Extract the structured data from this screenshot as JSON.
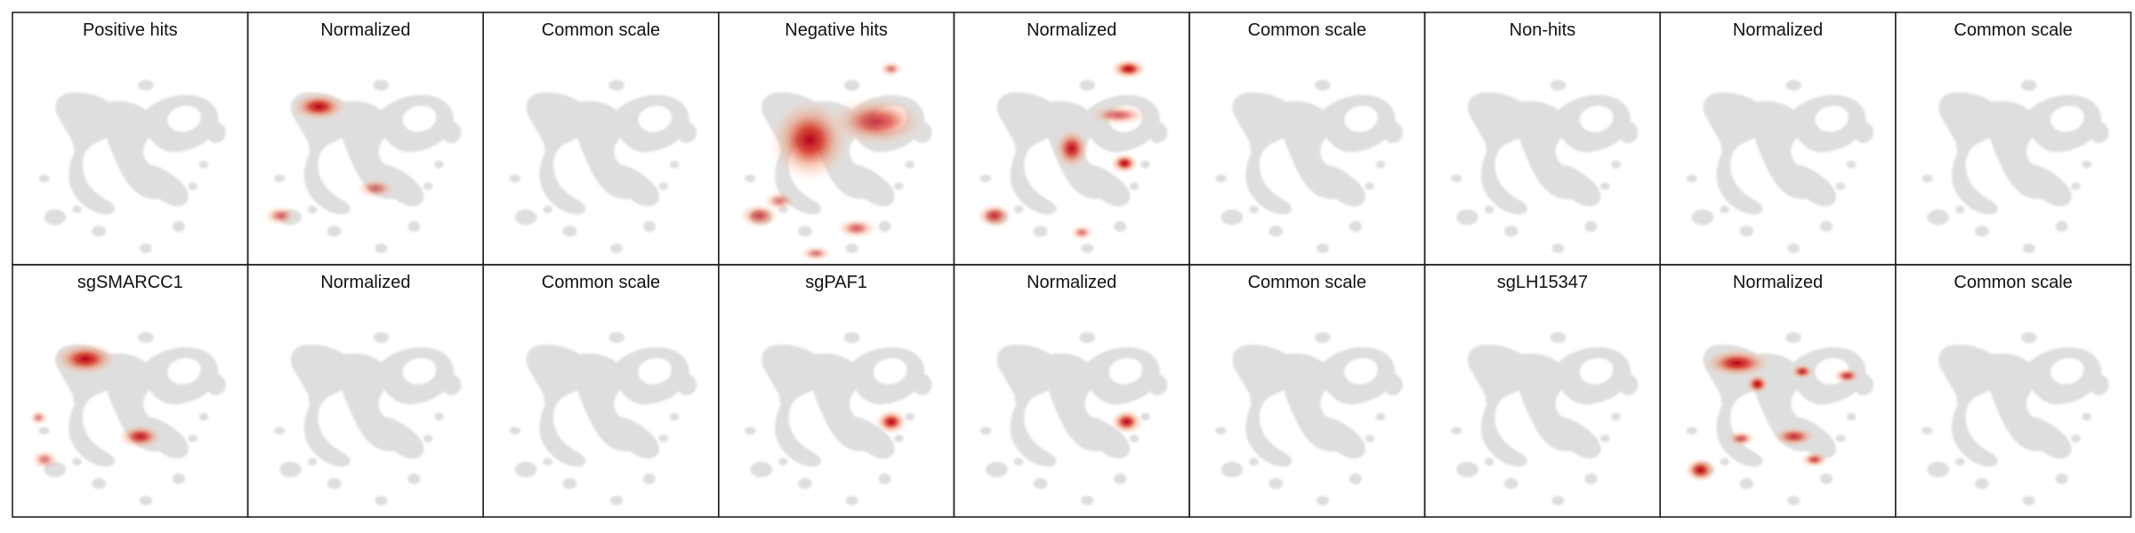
{
  "chart_data": {
    "type": "heatmap",
    "description_kind": "umap-density-grid",
    "rows": 2,
    "cols": 9,
    "grid": false,
    "colors": {
      "base_cells": "#dedede",
      "density_low": "#f3d6c2",
      "density_mid": "#e0553a",
      "density_high": "#b3001b"
    },
    "panels": [
      {
        "title": "Positive hits",
        "hotspots": []
      },
      {
        "title": "Normalized",
        "hotspots": [
          {
            "x": 0.27,
            "y": 0.28,
            "rx": 0.14,
            "ry": 0.07,
            "v": 0.95
          },
          {
            "x": 0.08,
            "y": 0.8,
            "rx": 0.08,
            "ry": 0.05,
            "v": 0.35
          },
          {
            "x": 0.55,
            "y": 0.67,
            "rx": 0.1,
            "ry": 0.05,
            "v": 0.3
          }
        ]
      },
      {
        "title": "Common scale",
        "hotspots": []
      },
      {
        "title": "Negative hits",
        "hotspots": [
          {
            "x": 0.37,
            "y": 0.44,
            "rx": 0.2,
            "ry": 0.2,
            "v": 0.95
          },
          {
            "x": 0.7,
            "y": 0.35,
            "rx": 0.24,
            "ry": 0.12,
            "v": 0.55
          },
          {
            "x": 0.12,
            "y": 0.8,
            "rx": 0.1,
            "ry": 0.06,
            "v": 0.45
          },
          {
            "x": 0.6,
            "y": 0.86,
            "rx": 0.1,
            "ry": 0.05,
            "v": 0.4
          },
          {
            "x": 0.4,
            "y": 0.98,
            "rx": 0.08,
            "ry": 0.04,
            "v": 0.3
          },
          {
            "x": 0.77,
            "y": 0.1,
            "rx": 0.06,
            "ry": 0.04,
            "v": 0.3
          },
          {
            "x": 0.22,
            "y": 0.73,
            "rx": 0.08,
            "ry": 0.05,
            "v": 0.3
          }
        ]
      },
      {
        "title": "Normalized",
        "hotspots": [
          {
            "x": 0.78,
            "y": 0.1,
            "rx": 0.09,
            "ry": 0.05,
            "v": 0.95
          },
          {
            "x": 0.5,
            "y": 0.48,
            "rx": 0.09,
            "ry": 0.1,
            "v": 0.7
          },
          {
            "x": 0.76,
            "y": 0.55,
            "rx": 0.07,
            "ry": 0.05,
            "v": 0.75
          },
          {
            "x": 0.12,
            "y": 0.8,
            "rx": 0.09,
            "ry": 0.06,
            "v": 0.55
          },
          {
            "x": 0.73,
            "y": 0.32,
            "rx": 0.15,
            "ry": 0.05,
            "v": 0.4
          },
          {
            "x": 0.55,
            "y": 0.88,
            "rx": 0.06,
            "ry": 0.04,
            "v": 0.3
          }
        ]
      },
      {
        "title": "Common scale",
        "hotspots": []
      },
      {
        "title": "Non-hits",
        "hotspots": []
      },
      {
        "title": "Normalized",
        "hotspots": []
      },
      {
        "title": "Common scale",
        "hotspots": []
      },
      {
        "title": "sgSMARCC1",
        "hotspots": [
          {
            "x": 0.28,
            "y": 0.28,
            "rx": 0.16,
            "ry": 0.08,
            "v": 0.95
          },
          {
            "x": 0.55,
            "y": 0.65,
            "rx": 0.11,
            "ry": 0.06,
            "v": 0.65
          },
          {
            "x": 0.08,
            "y": 0.76,
            "rx": 0.07,
            "ry": 0.05,
            "v": 0.3
          },
          {
            "x": 0.05,
            "y": 0.56,
            "rx": 0.05,
            "ry": 0.04,
            "v": 0.25
          }
        ]
      },
      {
        "title": "Normalized",
        "hotspots": []
      },
      {
        "title": "Common scale",
        "hotspots": []
      },
      {
        "title": "sgPAF1",
        "hotspots": [
          {
            "x": 0.77,
            "y": 0.58,
            "rx": 0.08,
            "ry": 0.06,
            "v": 0.95
          }
        ]
      },
      {
        "title": "Normalized",
        "hotspots": [
          {
            "x": 0.77,
            "y": 0.58,
            "rx": 0.08,
            "ry": 0.06,
            "v": 0.95
          }
        ]
      },
      {
        "title": "Common scale",
        "hotspots": []
      },
      {
        "title": "sgLH15347",
        "hotspots": []
      },
      {
        "title": "Normalized",
        "hotspots": [
          {
            "x": 0.3,
            "y": 0.3,
            "rx": 0.17,
            "ry": 0.07,
            "v": 0.95
          },
          {
            "x": 0.4,
            "y": 0.4,
            "rx": 0.06,
            "ry": 0.05,
            "v": 0.85
          },
          {
            "x": 0.12,
            "y": 0.81,
            "rx": 0.08,
            "ry": 0.06,
            "v": 0.9
          },
          {
            "x": 0.62,
            "y": 0.34,
            "rx": 0.06,
            "ry": 0.04,
            "v": 0.6
          },
          {
            "x": 0.84,
            "y": 0.36,
            "rx": 0.07,
            "ry": 0.04,
            "v": 0.55
          },
          {
            "x": 0.58,
            "y": 0.65,
            "rx": 0.11,
            "ry": 0.05,
            "v": 0.55
          },
          {
            "x": 0.32,
            "y": 0.66,
            "rx": 0.07,
            "ry": 0.04,
            "v": 0.45
          },
          {
            "x": 0.68,
            "y": 0.76,
            "rx": 0.07,
            "ry": 0.04,
            "v": 0.5
          }
        ]
      },
      {
        "title": "Common scale",
        "hotspots": []
      }
    ]
  }
}
